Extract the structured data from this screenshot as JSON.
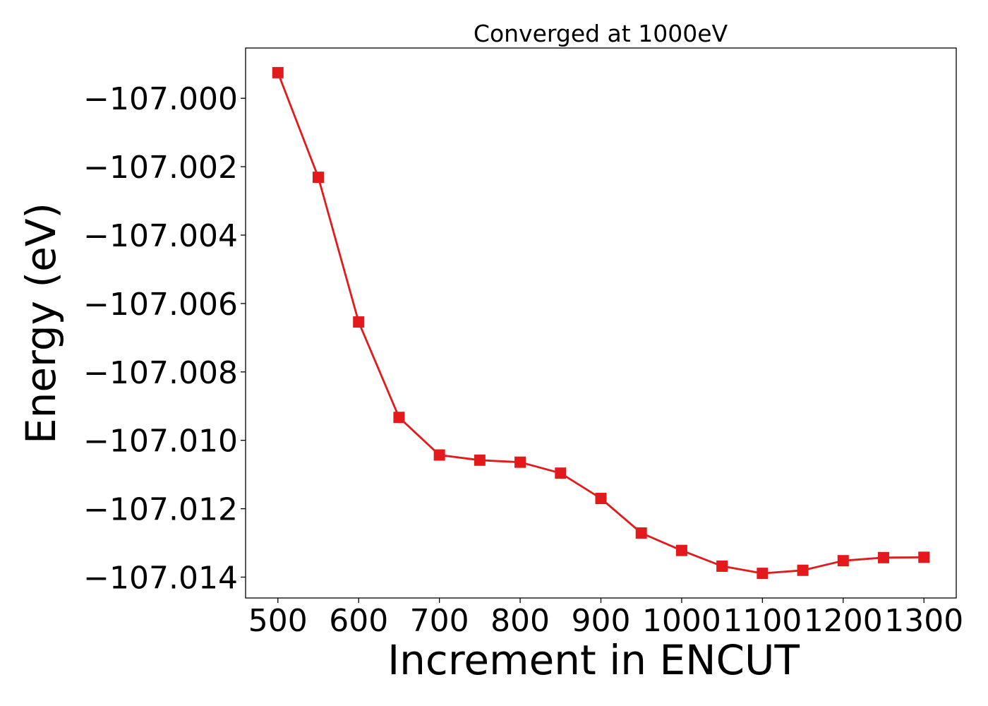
{
  "chart_data": {
    "type": "line",
    "title": "Converged at 1000eV",
    "xlabel": "Increment in ENCUT",
    "ylabel": "Energy (eV)",
    "xlim": [
      460,
      1340
    ],
    "ylim": [
      -107.01461,
      -106.99853
    ],
    "x_ticks": [
      500,
      600,
      700,
      800,
      900,
      1000,
      1100,
      1200,
      1300
    ],
    "x_tick_labels": [
      "500",
      "600",
      "700",
      "800",
      "900",
      "1000",
      "1100",
      "1200",
      "1300"
    ],
    "y_ticks": [
      -107.0,
      -107.002,
      -107.004,
      -107.006,
      -107.008,
      -107.01,
      -107.012,
      -107.014
    ],
    "y_tick_labels": [
      "−107.000",
      "−107.002",
      "−107.004",
      "−107.006",
      "−107.008",
      "−107.010",
      "−107.012",
      "−107.014"
    ],
    "grid": false,
    "series": [
      {
        "color": "#e31a1c",
        "marker": "square",
        "x": [
          500,
          550,
          600,
          650,
          700,
          750,
          800,
          850,
          900,
          950,
          1000,
          1050,
          1100,
          1150,
          1200,
          1250,
          1300
        ],
        "y": [
          -106.99925,
          -107.00231,
          -107.00654,
          -107.00933,
          -107.01043,
          -107.01058,
          -107.01064,
          -107.01096,
          -107.0117,
          -107.01271,
          -107.01322,
          -107.01368,
          -107.01389,
          -107.0138,
          -107.01352,
          -107.01343,
          -107.01342
        ]
      }
    ]
  }
}
